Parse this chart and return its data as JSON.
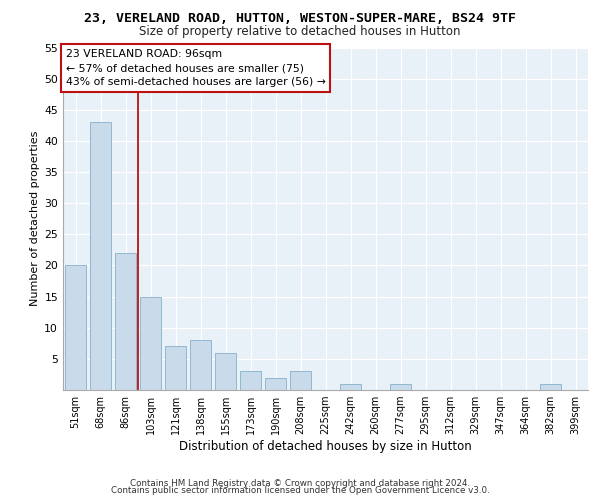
{
  "title": "23, VERELAND ROAD, HUTTON, WESTON-SUPER-MARE, BS24 9TF",
  "subtitle": "Size of property relative to detached houses in Hutton",
  "xlabel": "Distribution of detached houses by size in Hutton",
  "ylabel": "Number of detached properties",
  "bar_color": "#c9daea",
  "bar_edge_color": "#90b8d0",
  "categories": [
    "51sqm",
    "68sqm",
    "86sqm",
    "103sqm",
    "121sqm",
    "138sqm",
    "155sqm",
    "173sqm",
    "190sqm",
    "208sqm",
    "225sqm",
    "242sqm",
    "260sqm",
    "277sqm",
    "295sqm",
    "312sqm",
    "329sqm",
    "347sqm",
    "364sqm",
    "382sqm",
    "399sqm"
  ],
  "values": [
    20,
    43,
    22,
    15,
    7,
    8,
    6,
    3,
    2,
    3,
    0,
    1,
    0,
    1,
    0,
    0,
    0,
    0,
    0,
    1,
    0
  ],
  "vline_pos": 2.5,
  "vline_color": "#bb1111",
  "annotation_line1": "23 VERELAND ROAD: 96sqm",
  "annotation_line2": "← 57% of detached houses are smaller (75)",
  "annotation_line3": "43% of semi-detached houses are larger (56) →",
  "ann_box_fc": "#ffffff",
  "ann_box_ec": "#bb1111",
  "ylim": [
    0,
    55
  ],
  "yticks": [
    0,
    5,
    10,
    15,
    20,
    25,
    30,
    35,
    40,
    45,
    50,
    55
  ],
  "bg_color": "#e8f0f8",
  "grid_color": "#ffffff",
  "footer1": "Contains HM Land Registry data © Crown copyright and database right 2024.",
  "footer2": "Contains public sector information licensed under the Open Government Licence v3.0."
}
